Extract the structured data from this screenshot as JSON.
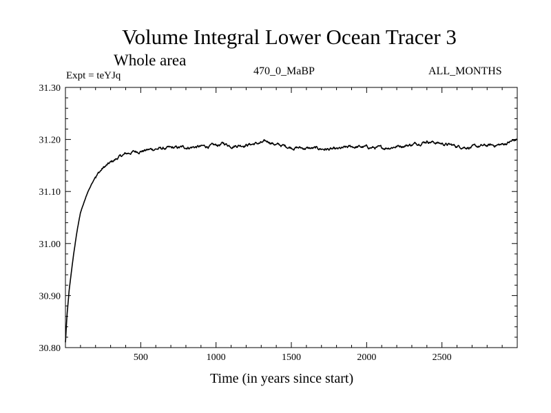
{
  "chart_data": {
    "type": "line",
    "title": "Volume Integral Lower Ocean Tracer 3",
    "subtitle": "Whole area",
    "experiment_label": "Expt = teYJq",
    "run_label": "470_0_MaBP",
    "months_label": "ALL_MONTHS",
    "xlabel": "Time (in years since start)",
    "ylabel": "",
    "xlim": [
      0,
      3000
    ],
    "ylim": [
      30.8,
      31.3
    ],
    "x_ticks": [
      500,
      1000,
      1500,
      2000,
      2500
    ],
    "y_ticks": [
      "30.80",
      "30.90",
      "31.00",
      "31.10",
      "31.20",
      "31.30"
    ],
    "grid": false,
    "series": [
      {
        "name": "Tracer 3",
        "color": "#000000",
        "x": [
          0,
          10,
          25,
          50,
          75,
          100,
          125,
          150,
          200,
          250,
          300,
          350,
          400,
          450,
          500,
          600,
          700,
          800,
          900,
          1000,
          1050,
          1100,
          1200,
          1300,
          1350,
          1400,
          1500,
          1600,
          1700,
          1800,
          1900,
          2000,
          2100,
          2200,
          2300,
          2400,
          2500,
          2600,
          2700,
          2800,
          2900,
          2950,
          3000
        ],
        "values": [
          30.81,
          30.86,
          30.91,
          30.97,
          31.02,
          31.06,
          31.08,
          31.1,
          31.13,
          31.145,
          31.155,
          31.165,
          31.172,
          31.176,
          31.178,
          31.182,
          31.183,
          31.185,
          31.186,
          31.188,
          31.192,
          31.188,
          31.19,
          31.193,
          31.196,
          31.19,
          31.185,
          31.183,
          31.182,
          31.18,
          31.186,
          31.185,
          31.183,
          31.187,
          31.19,
          31.197,
          31.192,
          31.187,
          31.185,
          31.188,
          31.19,
          31.195,
          31.2
        ]
      }
    ]
  }
}
